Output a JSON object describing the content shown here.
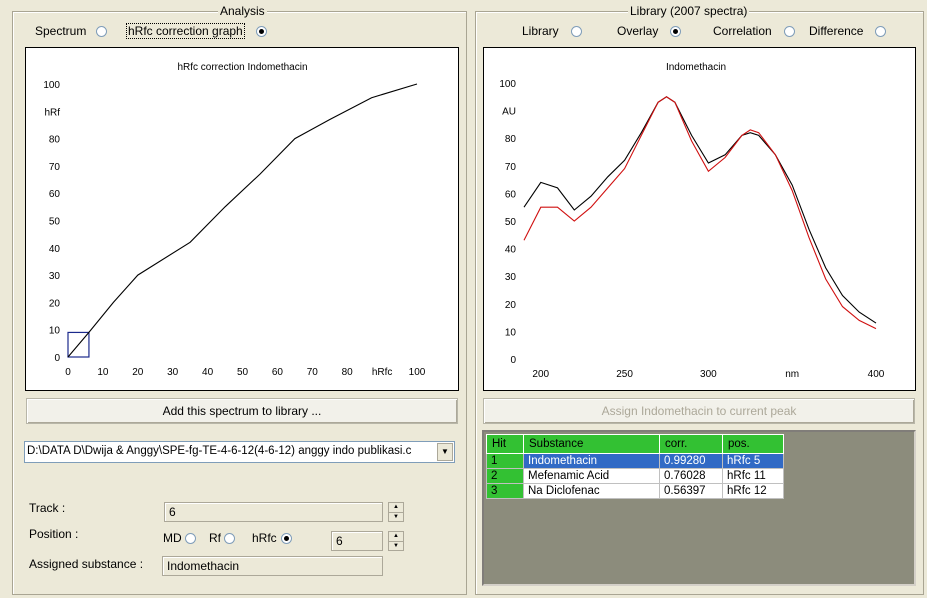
{
  "analysis": {
    "title": "Analysis",
    "radio_spectrum": "Spectrum",
    "radio_hrfc": "hRfc correction graph",
    "selected": "hrfc",
    "chart_title": "hRfc correction Indomethacin",
    "add_button": "Add this spectrum to library ...",
    "file_path": "D:\\DATA D\\Dwija & Anggy\\SPE-fg-TE-4-6-12(4-6-12) anggy indo publikasi.c",
    "track_label": "Track :",
    "track_value": "6",
    "position_label": "Position :",
    "pos_md": "MD",
    "pos_rf": "Rf",
    "pos_hrfc": "hRfc",
    "position_value": "6",
    "assigned_label": "Assigned substance :",
    "assigned_value": "Indomethacin"
  },
  "library": {
    "title": "Library (2007 spectra)",
    "radio_library": "Library",
    "radio_overlay": "Overlay",
    "radio_correlation": "Correlation",
    "radio_difference": "Difference",
    "selected": "overlay",
    "chart_title": "Indomethacin",
    "assign_button": "Assign Indomethacin to current peak",
    "table": {
      "headers": [
        "Hit",
        "Substance",
        "corr.",
        "pos."
      ],
      "rows": [
        {
          "hit": "1",
          "substance": "Indomethacin",
          "corr": "0.99280",
          "pos": "hRfc  5"
        },
        {
          "hit": "2",
          "substance": "Mefenamic Acid",
          "corr": "0.76028",
          "pos": "hRfc 11"
        },
        {
          "hit": "3",
          "substance": "Na Diclofenac",
          "corr": "0.56397",
          "pos": "hRfc 12"
        }
      ]
    }
  },
  "colors": {
    "selection": "#316ac5",
    "header_green": "#33c133",
    "overlay_red": "#d01010"
  },
  "chart_data": [
    {
      "type": "line",
      "title": "hRfc correction Indomethacin",
      "xlabel": "hRfc",
      "ylabel": "hRf",
      "xlim": [
        0,
        100
      ],
      "ylim": [
        0,
        100
      ],
      "x_ticks": [
        "0",
        "10",
        "20",
        "30",
        "40",
        "50",
        "60",
        "70",
        "80",
        "hRfc",
        "100"
      ],
      "y_ticks": [
        "0",
        "10",
        "20",
        "30",
        "40",
        "50",
        "60",
        "70",
        "80",
        "hRf",
        "100"
      ],
      "series": [
        {
          "x": [
            0,
            6,
            13,
            20,
            35,
            45,
            55,
            65,
            75,
            87,
            100
          ],
          "y": [
            0,
            9,
            20,
            30,
            42,
            55,
            67,
            80,
            87,
            95,
            100
          ]
        }
      ],
      "marker": {
        "x": 6,
        "y": 9
      }
    },
    {
      "type": "line",
      "title": "Indomethacin",
      "xlabel": "nm",
      "ylabel": "AU",
      "xlim": [
        190,
        400
      ],
      "ylim": [
        0,
        100
      ],
      "x_ticks": [
        "200",
        "250",
        "300",
        "nm",
        "400"
      ],
      "y_ticks": [
        "0",
        "10",
        "20",
        "30",
        "40",
        "50",
        "60",
        "70",
        "80",
        "AU",
        "100"
      ],
      "series": [
        {
          "color": "#000000",
          "x": [
            190,
            200,
            210,
            220,
            230,
            240,
            250,
            260,
            270,
            275,
            280,
            290,
            300,
            310,
            320,
            325,
            330,
            340,
            350,
            360,
            370,
            380,
            390,
            400
          ],
          "y": [
            55,
            64,
            62,
            54,
            59,
            66,
            72,
            82,
            93,
            95,
            93,
            81,
            71,
            74,
            81,
            82,
            81,
            74,
            63,
            47,
            33,
            23,
            17,
            13
          ]
        },
        {
          "color": "#d01010",
          "x": [
            190,
            200,
            210,
            220,
            230,
            240,
            250,
            260,
            270,
            275,
            280,
            290,
            300,
            310,
            320,
            325,
            330,
            340,
            350,
            360,
            370,
            380,
            390,
            400
          ],
          "y": [
            43,
            55,
            55,
            50,
            55,
            62,
            69,
            81,
            93,
            95,
            93,
            79,
            68,
            73,
            81,
            83,
            82,
            74,
            61,
            44,
            29,
            19,
            14,
            11
          ]
        }
      ]
    }
  ]
}
